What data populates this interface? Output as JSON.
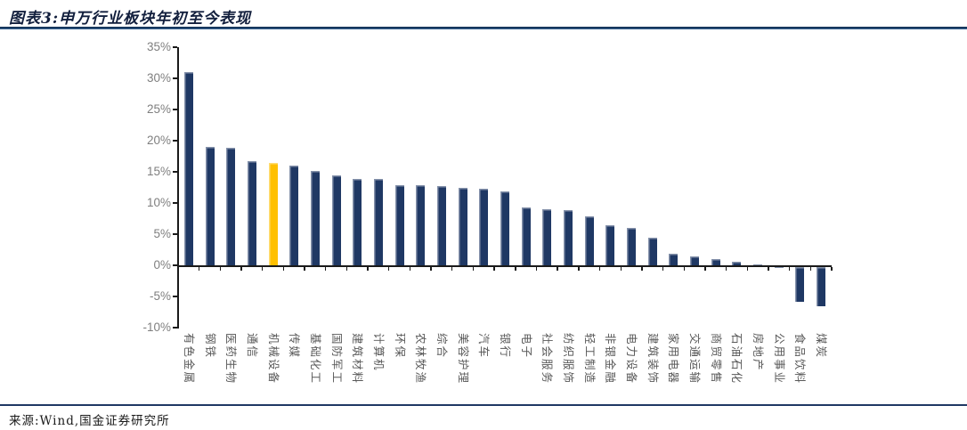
{
  "header": {
    "figure_label": "图表3:",
    "title": "图表3:申万行业板块年初至今表现"
  },
  "footer": {
    "source_note": "来源:Wind,国金证券研究所"
  },
  "colors": {
    "bar": "#1f3864",
    "highlight_bar": "#ffc000",
    "axis": "#1a1a1a",
    "y_tick_label": "#7f7f7f",
    "category_label": "#595959",
    "title_text": "#121f3d",
    "title_rule": "#16365c",
    "bottom_rule": "#1f3864"
  },
  "chart_data": {
    "type": "bar",
    "title": "申万行业板块年初至今表现",
    "xlabel": "",
    "ylabel": "",
    "unit": "%",
    "ylim": [
      -10,
      35
    ],
    "y_tick_step": 5,
    "y_tick_labels": [
      "35%",
      "30%",
      "25%",
      "20%",
      "15%",
      "10%",
      "5%",
      "0%",
      "-5%",
      "-10%"
    ],
    "grid": false,
    "legend": false,
    "highlight_index": 4,
    "highlight_category": "机械设备",
    "categories": [
      "有色金属",
      "钢铁",
      "医药生物",
      "通信",
      "机械设备",
      "传媒",
      "基础化工",
      "国防军工",
      "建筑材料",
      "计算机",
      "环保",
      "农林牧渔",
      "综合",
      "美容护理",
      "汽车",
      "银行",
      "电子",
      "社会服务",
      "纺织服饰",
      "轻工制造",
      "非银金融",
      "电力设备",
      "建筑装饰",
      "家用电器",
      "交通运输",
      "商贸零售",
      "石油石化",
      "房地产",
      "公用事业",
      "食品饮料",
      "煤炭"
    ],
    "values": [
      31.0,
      19.0,
      18.8,
      16.7,
      16.4,
      16.0,
      15.1,
      14.4,
      13.8,
      13.8,
      12.9,
      12.8,
      12.7,
      12.4,
      12.3,
      11.9,
      9.3,
      9.0,
      8.9,
      7.9,
      6.4,
      6.0,
      4.4,
      1.8,
      1.5,
      1.0,
      0.6,
      0.2,
      -0.2,
      -5.5,
      -6.3
    ]
  }
}
